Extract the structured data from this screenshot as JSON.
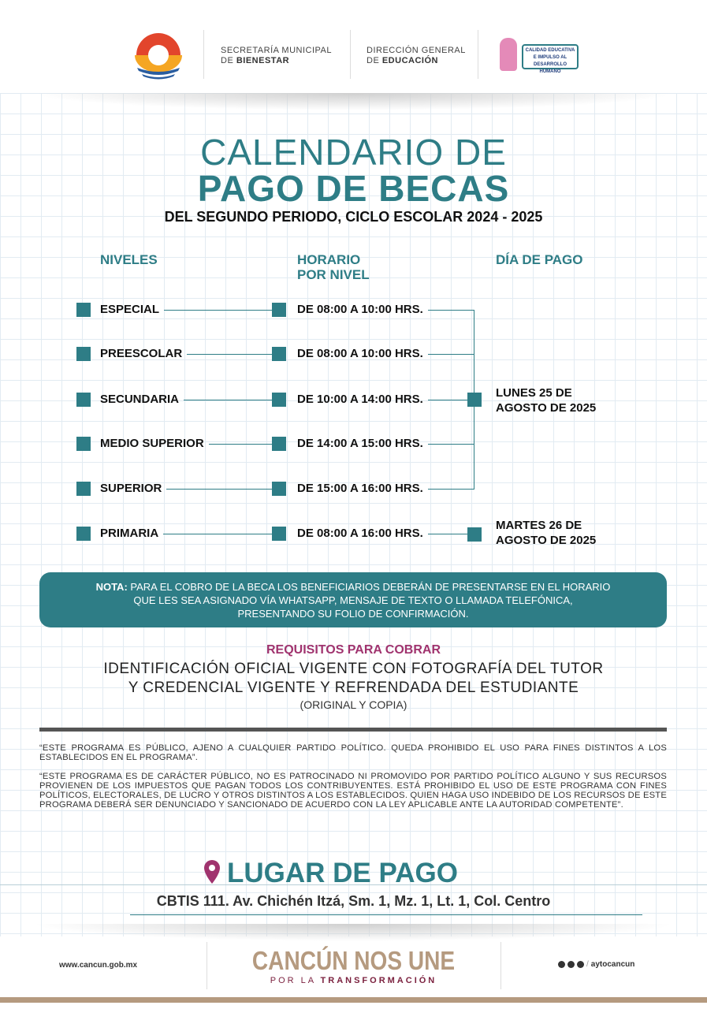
{
  "header": {
    "secretaria_line1": "SECRETARÍA MUNICIPAL",
    "secretaria_prefix": "DE ",
    "secretaria_bold": "BIENESTAR",
    "direccion_line1": "DIRECCIÓN GENERAL",
    "direccion_prefix": "DE ",
    "direccion_bold": "EDUCACIÓN",
    "badge_logo_text": "CALIDAD EDUCATIVA E IMPULSO AL DESARROLLO HUMANO"
  },
  "title": {
    "line1": "CALENDARIO DE",
    "line2": "PAGO DE BECAS",
    "subtitle": "DEL SEGUNDO PERIODO, CICLO ESCOLAR 2024 - 2025"
  },
  "columns": {
    "niveles": "NIVELES",
    "horario_1": "HORARIO",
    "horario_2": "POR NIVEL",
    "dia": "DÍA DE PAGO"
  },
  "rows": [
    {
      "nivel": "ESPECIAL",
      "horario": "DE 08:00 A 10:00 HRS."
    },
    {
      "nivel": "PREESCOLAR",
      "horario": "DE 08:00 A 10:00 HRS."
    },
    {
      "nivel": "SECUNDARIA",
      "horario": "DE 10:00 A 14:00 HRS."
    },
    {
      "nivel": "MEDIO SUPERIOR",
      "horario": "DE 14:00 A 15:00 HRS."
    },
    {
      "nivel": "SUPERIOR",
      "horario": "DE 15:00 A 16:00 HRS."
    },
    {
      "nivel": "PRIMARIA",
      "horario": "DE 08:00 A 16:00 HRS."
    }
  ],
  "dias": [
    {
      "line1": "LUNES 25 DE",
      "line2": "AGOSTO DE 2025"
    },
    {
      "line1": "MARTES 26 DE",
      "line2": "AGOSTO DE 2025"
    }
  ],
  "nota": {
    "label": "NOTA:",
    "line1": " PARA EL COBRO DE LA BECA LOS BENEFICIARIOS DEBERÁN DE PRESENTARSE EN EL HORARIO",
    "line2": "QUE LES SEA ASIGNADO VÍA WHATSAPP, MENSAJE DE TEXTO O LLAMADA TELEFÓNICA,",
    "line3": "PRESENTANDO SU FOLIO DE CONFIRMACIÓN."
  },
  "requisitos": {
    "title": "REQUISITOS PARA COBRAR",
    "line1": "IDENTIFICACIÓN OFICIAL VIGENTE CON FOTOGRAFÍA DEL TUTOR",
    "line2": "Y CREDENCIAL VIGENTE Y REFRENDADA DEL ESTUDIANTE",
    "line3": "(ORIGINAL Y COPIA)"
  },
  "legal": {
    "p1": "“ESTE PROGRAMA ES PÚBLICO, AJENO A CUALQUIER PARTIDO POLÍTICO. QUEDA PROHIBIDO EL USO PARA FINES DISTINTOS A LOS ESTABLECIDOS EN EL PROGRAMA”.",
    "p2": "“ESTE PROGRAMA ES DE CARÁCTER PÚBLICO, NO ES PATROCINADO NI PROMOVIDO POR PARTIDO POLÍTICO ALGUNO Y SUS RECURSOS PROVIENEN DE LOS IMPUESTOS QUE PAGAN TODOS LOS CONTRIBUYENTES. ESTÁ PROHIBIDO EL USO DE ESTE PROGRAMA CON FINES POLÍTICOS, ELECTORALES, DE LUCRO Y OTROS DISTINTOS A LOS ESTABLECIDOS. QUIEN HAGA USO INDEBIDO DE LOS RECURSOS DE ESTE PROGRAMA DEBERÁ SER DENUNCIADO Y SANCIONADO DE ACUERDO CON LA LEY APLICABLE ANTE LA AUTORIDAD COMPETENTE”."
  },
  "lugar": {
    "title": "LUGAR DE PAGO",
    "icon": "map-pin-icon",
    "address": "CBTIS 111. Av. Chichén Itzá, Sm. 1, Mz. 1, Lt. 1, Col. Centro"
  },
  "footer": {
    "website": "www.cancun.gob.mx",
    "slogan1": "CANCÚN NOS UNE",
    "slogan2_prefix": "POR LA ",
    "slogan2_bold": "TRANSFORMACIÓN",
    "social": "aytocancun"
  },
  "colors": {
    "teal": "#2e7d86",
    "magenta": "#a0336e",
    "tan": "#b59a7f",
    "maroon": "#7a1f3d"
  }
}
